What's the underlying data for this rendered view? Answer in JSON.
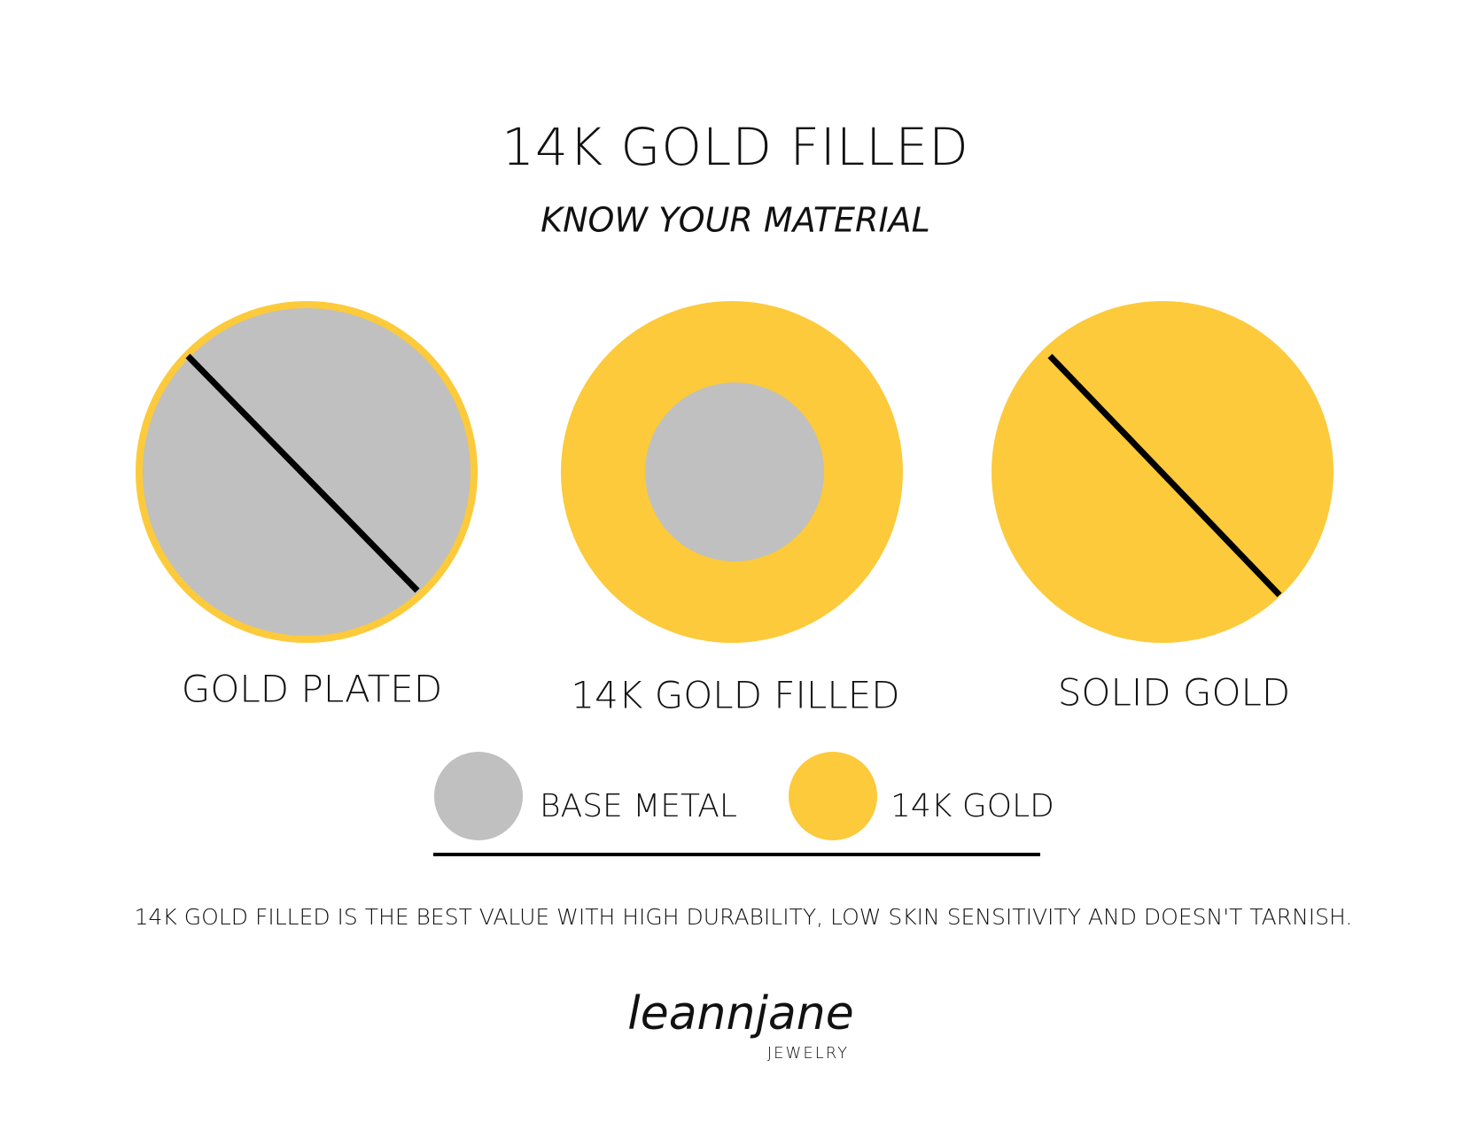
{
  "header": {
    "title": "14K GOLD FILLED",
    "subtitle": "KNOW YOUR MATERIAL"
  },
  "diagrams": [
    {
      "label": "GOLD PLATED"
    },
    {
      "label": "14K GOLD FILLED"
    },
    {
      "label": "SOLID GOLD"
    }
  ],
  "legend": [
    {
      "label": "BASE METAL"
    },
    {
      "label": "14K GOLD"
    }
  ],
  "note": "14K GOLD FILLED IS THE BEST VALUE WITH HIGH DURABILITY, LOW SKIN SENSITIVITY AND DOESN'T TARNISH.",
  "logo": {
    "name": "leannjane",
    "tagline": "JEWELRY"
  }
}
